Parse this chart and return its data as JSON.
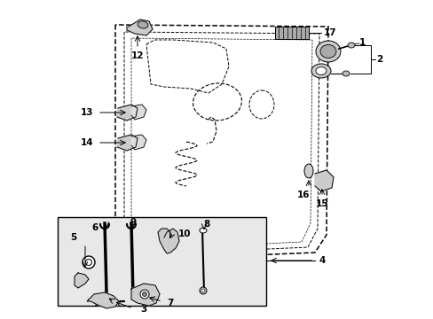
{
  "bg_color": "#ffffff",
  "line_color": "#000000",
  "box_bg": "#e8e8e8",
  "figsize": [
    4.89,
    3.6
  ],
  "dpi": 100
}
